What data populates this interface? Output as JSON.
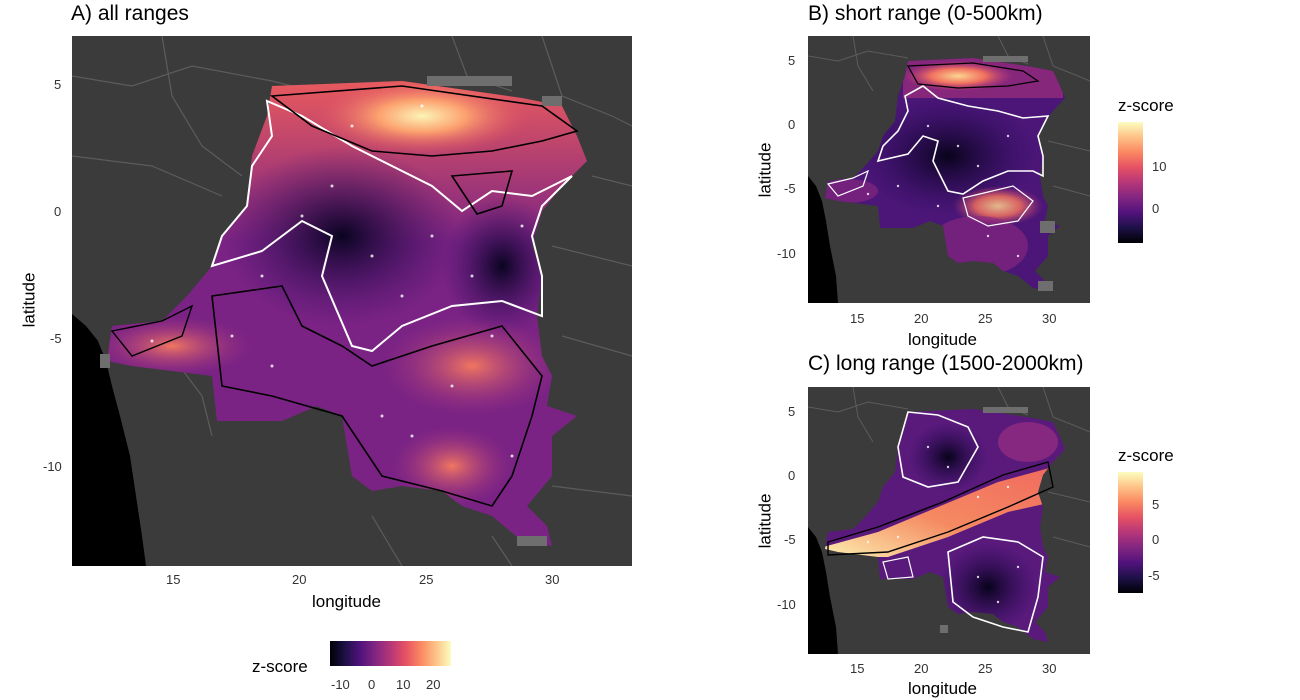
{
  "figure": {
    "panel_a": {
      "title": "A) all ranges",
      "xlabel": "longitude",
      "ylabel": "latitude",
      "x_ticks": [
        "15",
        "20",
        "25",
        "30"
      ],
      "y_ticks": [
        "5",
        "0",
        "-5",
        "-10"
      ],
      "legend": {
        "title": "z-score",
        "ticks": [
          "-10",
          "0",
          "10",
          "20"
        ],
        "range": [
          -15,
          25
        ],
        "orientation": "horizontal",
        "placement": "bottom"
      }
    },
    "panel_b": {
      "title": "B) short range (0-500km)",
      "xlabel": "longitude",
      "ylabel": "latitude",
      "x_ticks": [
        "15",
        "20",
        "25",
        "30"
      ],
      "y_ticks": [
        "5",
        "0",
        "-5",
        "-10"
      ],
      "legend": {
        "title": "z-score",
        "ticks": [
          "10",
          "0"
        ],
        "range": [
          -4,
          19
        ],
        "orientation": "vertical",
        "placement": "right"
      }
    },
    "panel_c": {
      "title": "C) long range (1500-2000km)",
      "xlabel": "longitude",
      "ylabel": "latitude",
      "x_ticks": [
        "15",
        "20",
        "25",
        "30"
      ],
      "y_ticks": [
        "5",
        "0",
        "-5",
        "-10"
      ],
      "legend": {
        "title": "z-score",
        "ticks": [
          "5",
          "0",
          "-5"
        ],
        "range": [
          -8,
          10
        ],
        "orientation": "vertical",
        "placement": "right"
      }
    }
  },
  "colors": {
    "background": "#3b3b3b",
    "ocean": "#000000",
    "borders": "#5c5c5c",
    "palette": [
      "#000004",
      "#3b0f70",
      "#8c2981",
      "#de4968",
      "#fe9f6d",
      "#fcfdbf"
    ],
    "cluster_high_outline": "#000000",
    "cluster_low_outline": "#ffffff"
  }
}
